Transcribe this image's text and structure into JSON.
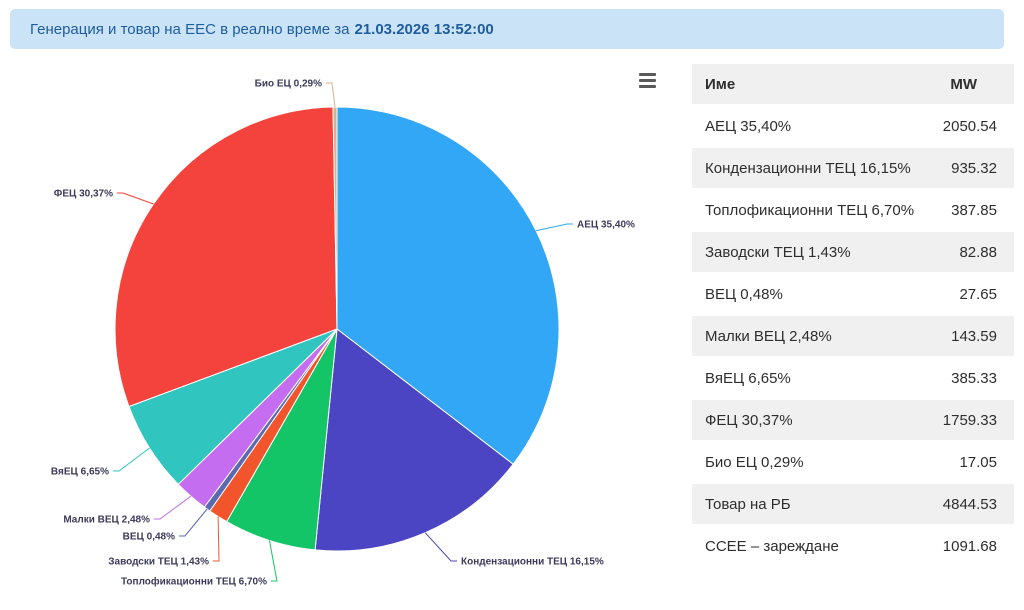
{
  "banner": {
    "title_prefix": "Генерация и товар на ЕЕС в реално време за",
    "datetime": "21.03.2026 13:52:00"
  },
  "chart_data": {
    "type": "pie",
    "title": "Генерация и товар на ЕЕС в реално време за 21.03.2026 13:52:00",
    "unit": "MW",
    "legend_position": "none",
    "start_angle_deg": 0,
    "direction": "clockwise",
    "slices": [
      {
        "key": "aec",
        "name": "АЕЦ",
        "label": "АЕЦ 35,40%",
        "pct": 35.4,
        "mw": 2050.54,
        "color": "#32a7f5"
      },
      {
        "key": "kond-tec",
        "name": "Кондензационни ТЕЦ",
        "label": "Кондензационни ТЕЦ 16,15%",
        "pct": 16.15,
        "mw": 935.32,
        "color": "#4c45c3"
      },
      {
        "key": "toplo-tec",
        "name": "Топлофикационни ТЕЦ",
        "label": "Топлофикационни ТЕЦ 6,70%",
        "pct": 6.7,
        "mw": 387.85,
        "color": "#13c566"
      },
      {
        "key": "zavodski-tec",
        "name": "Заводски ТЕЦ",
        "label": "Заводски ТЕЦ 1,43%",
        "pct": 1.43,
        "mw": 82.88,
        "color": "#f2552c"
      },
      {
        "key": "vec",
        "name": "ВЕЦ",
        "label": "ВЕЦ 0,48%",
        "pct": 0.48,
        "mw": 27.65,
        "color": "#5a69b0"
      },
      {
        "key": "malki-vec",
        "name": "Малки ВЕЦ",
        "label": "Малки ВЕЦ 2,48%",
        "pct": 2.48,
        "mw": 143.59,
        "color": "#c46df0"
      },
      {
        "key": "vya-ec",
        "name": "ВяЕЦ",
        "label": "ВяЕЦ 6,65%",
        "pct": 6.65,
        "mw": 385.33,
        "color": "#30c5bf"
      },
      {
        "key": "fec",
        "name": "ФЕЦ",
        "label": "ФЕЦ 30,37%",
        "pct": 30.37,
        "mw": 1759.33,
        "color": "#f4423c"
      },
      {
        "key": "bio-ec",
        "name": "Био ЕЦ",
        "label": "Био ЕЦ 0,29%",
        "pct": 0.29,
        "mw": 17.05,
        "color": "#d9b285"
      }
    ]
  },
  "table": {
    "columns": [
      "Име",
      "MW"
    ],
    "rows": [
      {
        "name": "АЕЦ 35,40%",
        "mw": "2050.54"
      },
      {
        "name": "Кондензационни ТЕЦ 16,15%",
        "mw": "935.32"
      },
      {
        "name": "Топлофикационни ТЕЦ 6,70%",
        "mw": "387.85"
      },
      {
        "name": "Заводски ТЕЦ 1,43%",
        "mw": "82.88"
      },
      {
        "name": "ВЕЦ 0,48%",
        "mw": "27.65"
      },
      {
        "name": "Малки ВЕЦ 2,48%",
        "mw": "143.59"
      },
      {
        "name": "ВяЕЦ 6,65%",
        "mw": "385.33"
      },
      {
        "name": "ФЕЦ 30,37%",
        "mw": "1759.33"
      },
      {
        "name": "Био ЕЦ 0,29%",
        "mw": "17.05"
      },
      {
        "name": "Товар на РБ",
        "mw": "4844.53"
      },
      {
        "name": "ССЕЕ – зареждане",
        "mw": "1091.68"
      }
    ]
  }
}
